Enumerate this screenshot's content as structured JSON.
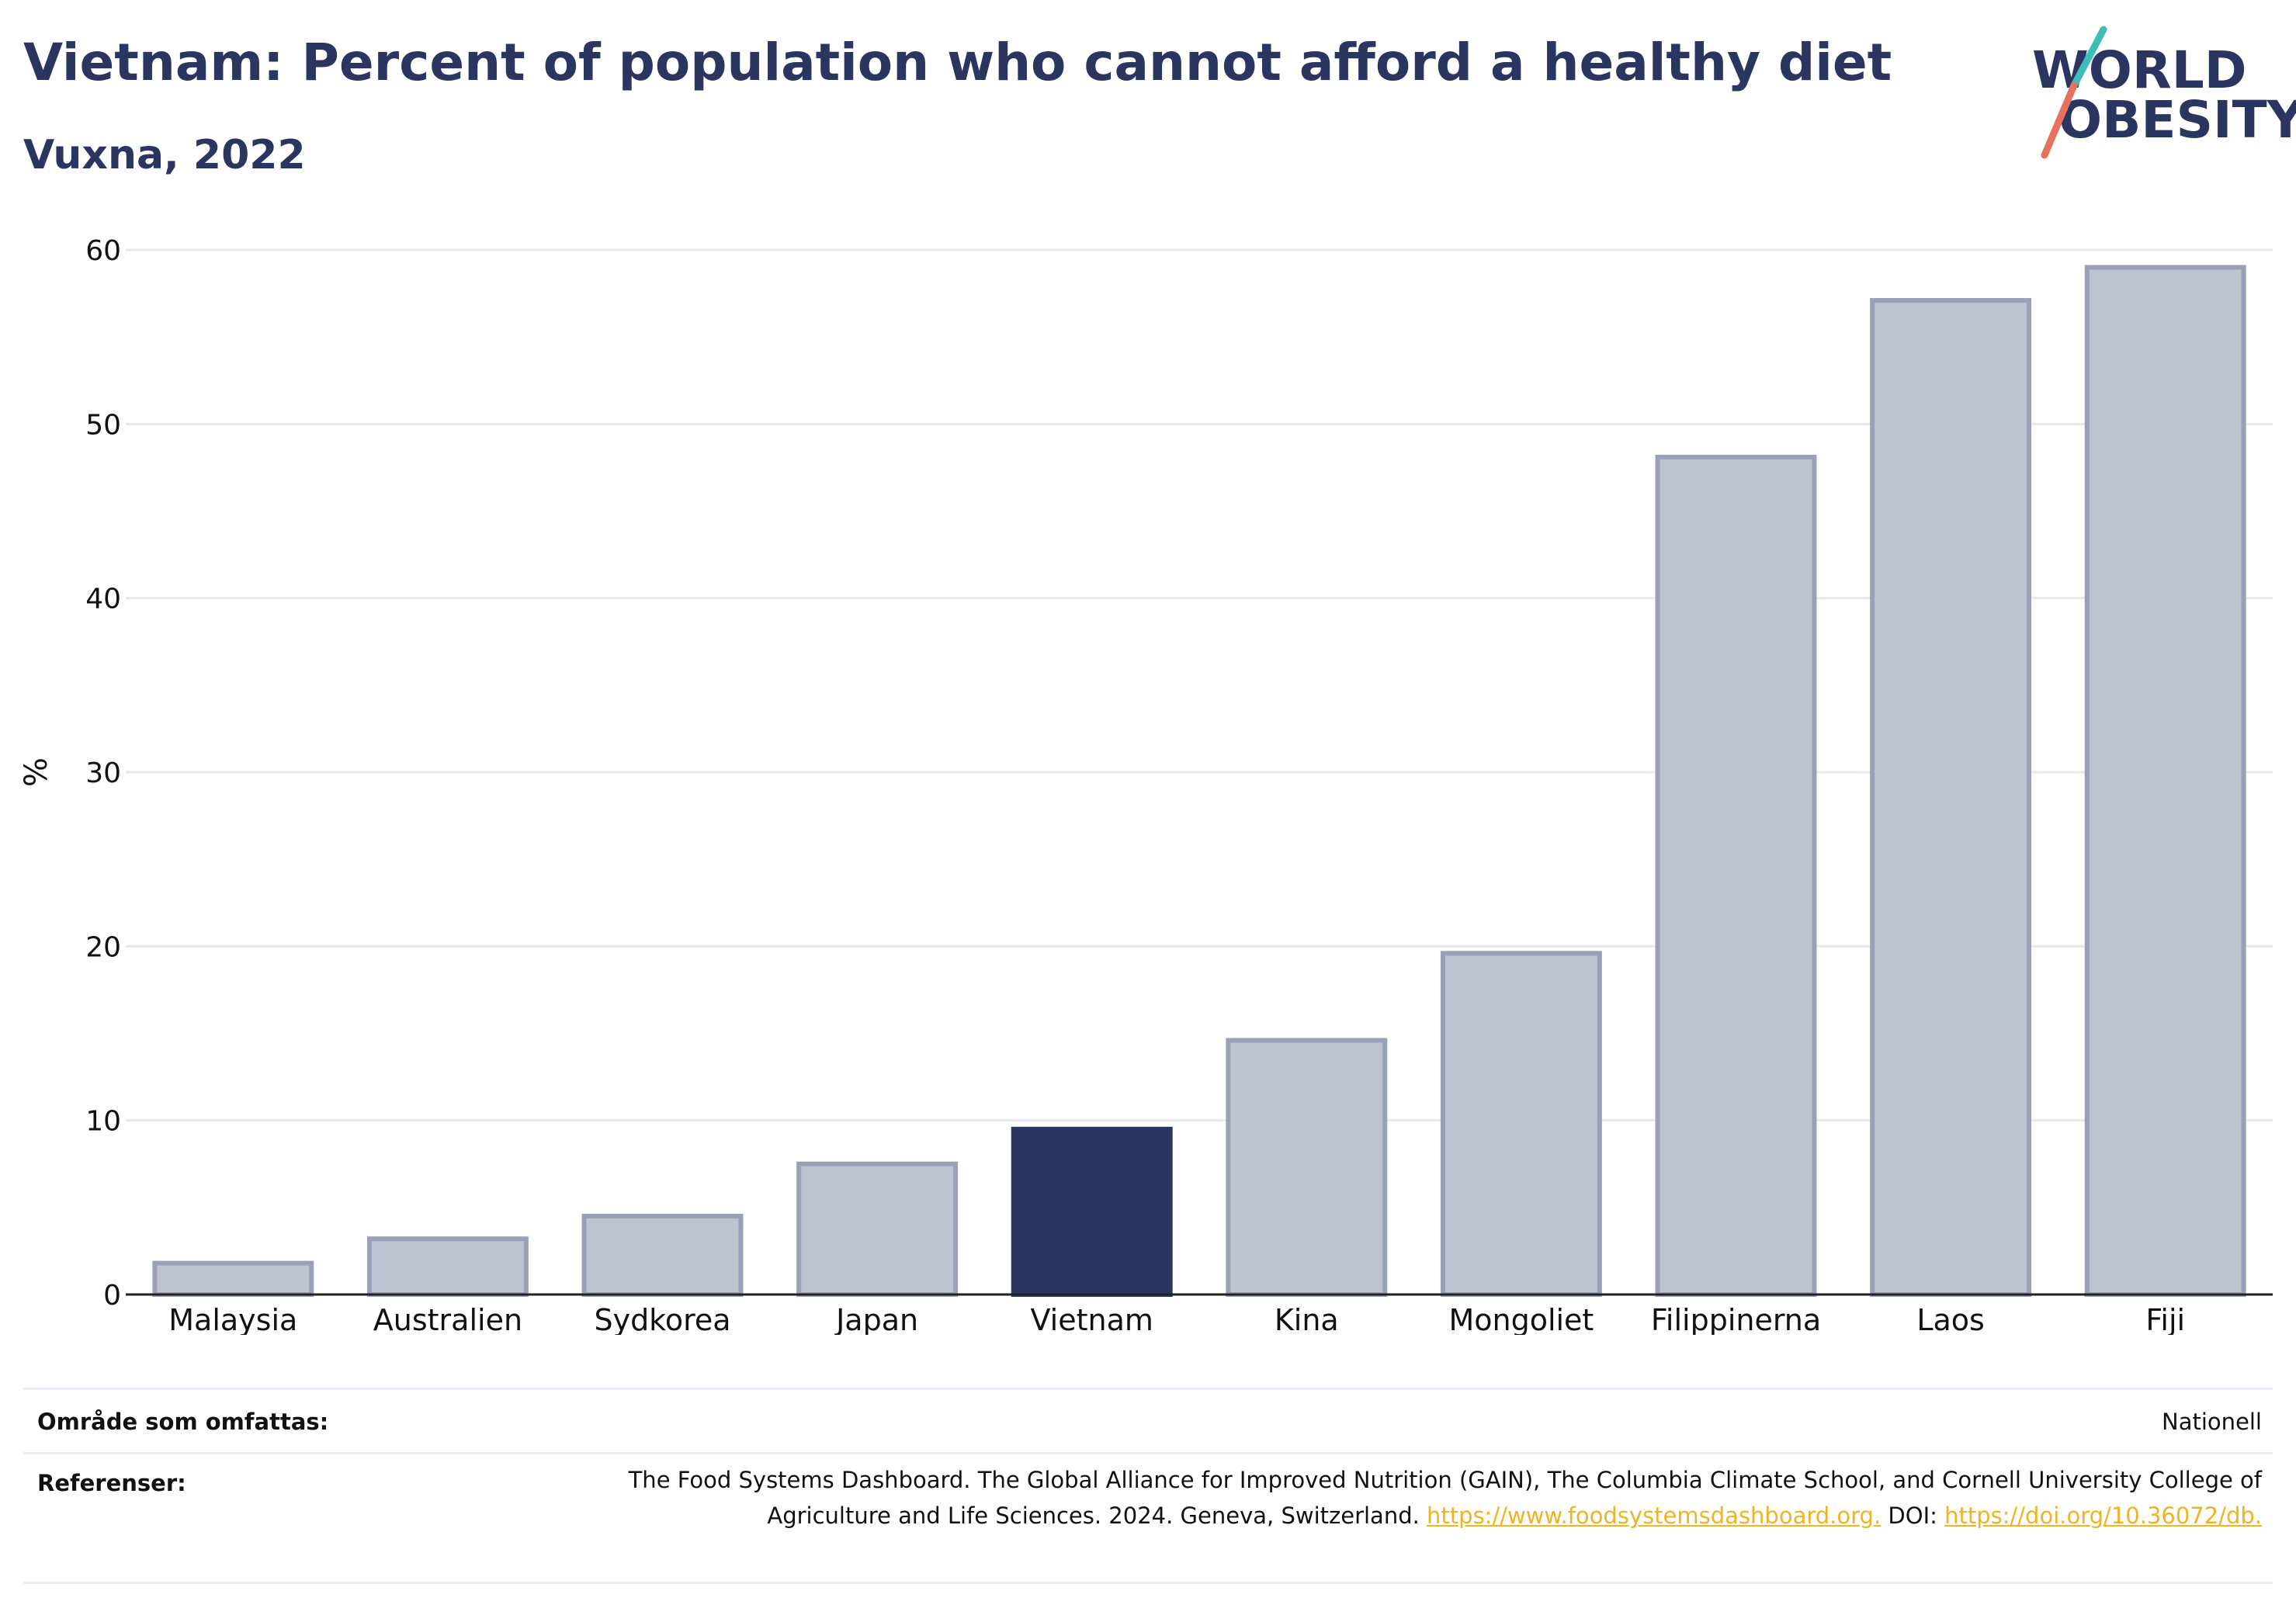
{
  "header": {
    "title": "Vietnam: Percent of population who cannot afford a healthy diet",
    "subtitle": "Vuxna, 2022"
  },
  "logo": {
    "line1": "WORLD",
    "line2": "OBESITY"
  },
  "colors": {
    "highlight": "#2a3560",
    "bar": "#bfc2d0",
    "bar_edge": "#9aa0b8",
    "link": "#f0b323",
    "logo_teal": "#3dbdb5",
    "logo_coral": "#e8705e"
  },
  "chart_data": {
    "type": "bar",
    "categories": [
      "Malaysia",
      "Australien",
      "Sydkorea",
      "Japan",
      "Vietnam",
      "Kina",
      "Mongoliet",
      "Filippinerna",
      "Laos",
      "Fiji"
    ],
    "values": [
      1.8,
      3.2,
      4.5,
      7.5,
      9.5,
      14.6,
      19.6,
      48.1,
      57.1,
      59
    ],
    "highlight": "Vietnam",
    "ylabel": "%",
    "ylim": [
      0,
      60
    ],
    "yticks": [
      0,
      10,
      20,
      30,
      40,
      50,
      60
    ],
    "grid": true
  },
  "footer": {
    "coverage_label": "Område som omfattas:",
    "coverage_value": "Nationell",
    "references_label": "Referenser:",
    "references_text": "The Food Systems Dashboard. The Global Alliance for Improved Nutrition (GAIN), The Columbia Climate School, and Cornell University College of Agriculture and Life Sciences. 2024. Geneva, Switzerland.",
    "references_link1": "https://www.foodsystemsdashboard.org.",
    "references_doi_label": "DOI:",
    "references_link2": "https://doi.org/10.36072/db."
  }
}
